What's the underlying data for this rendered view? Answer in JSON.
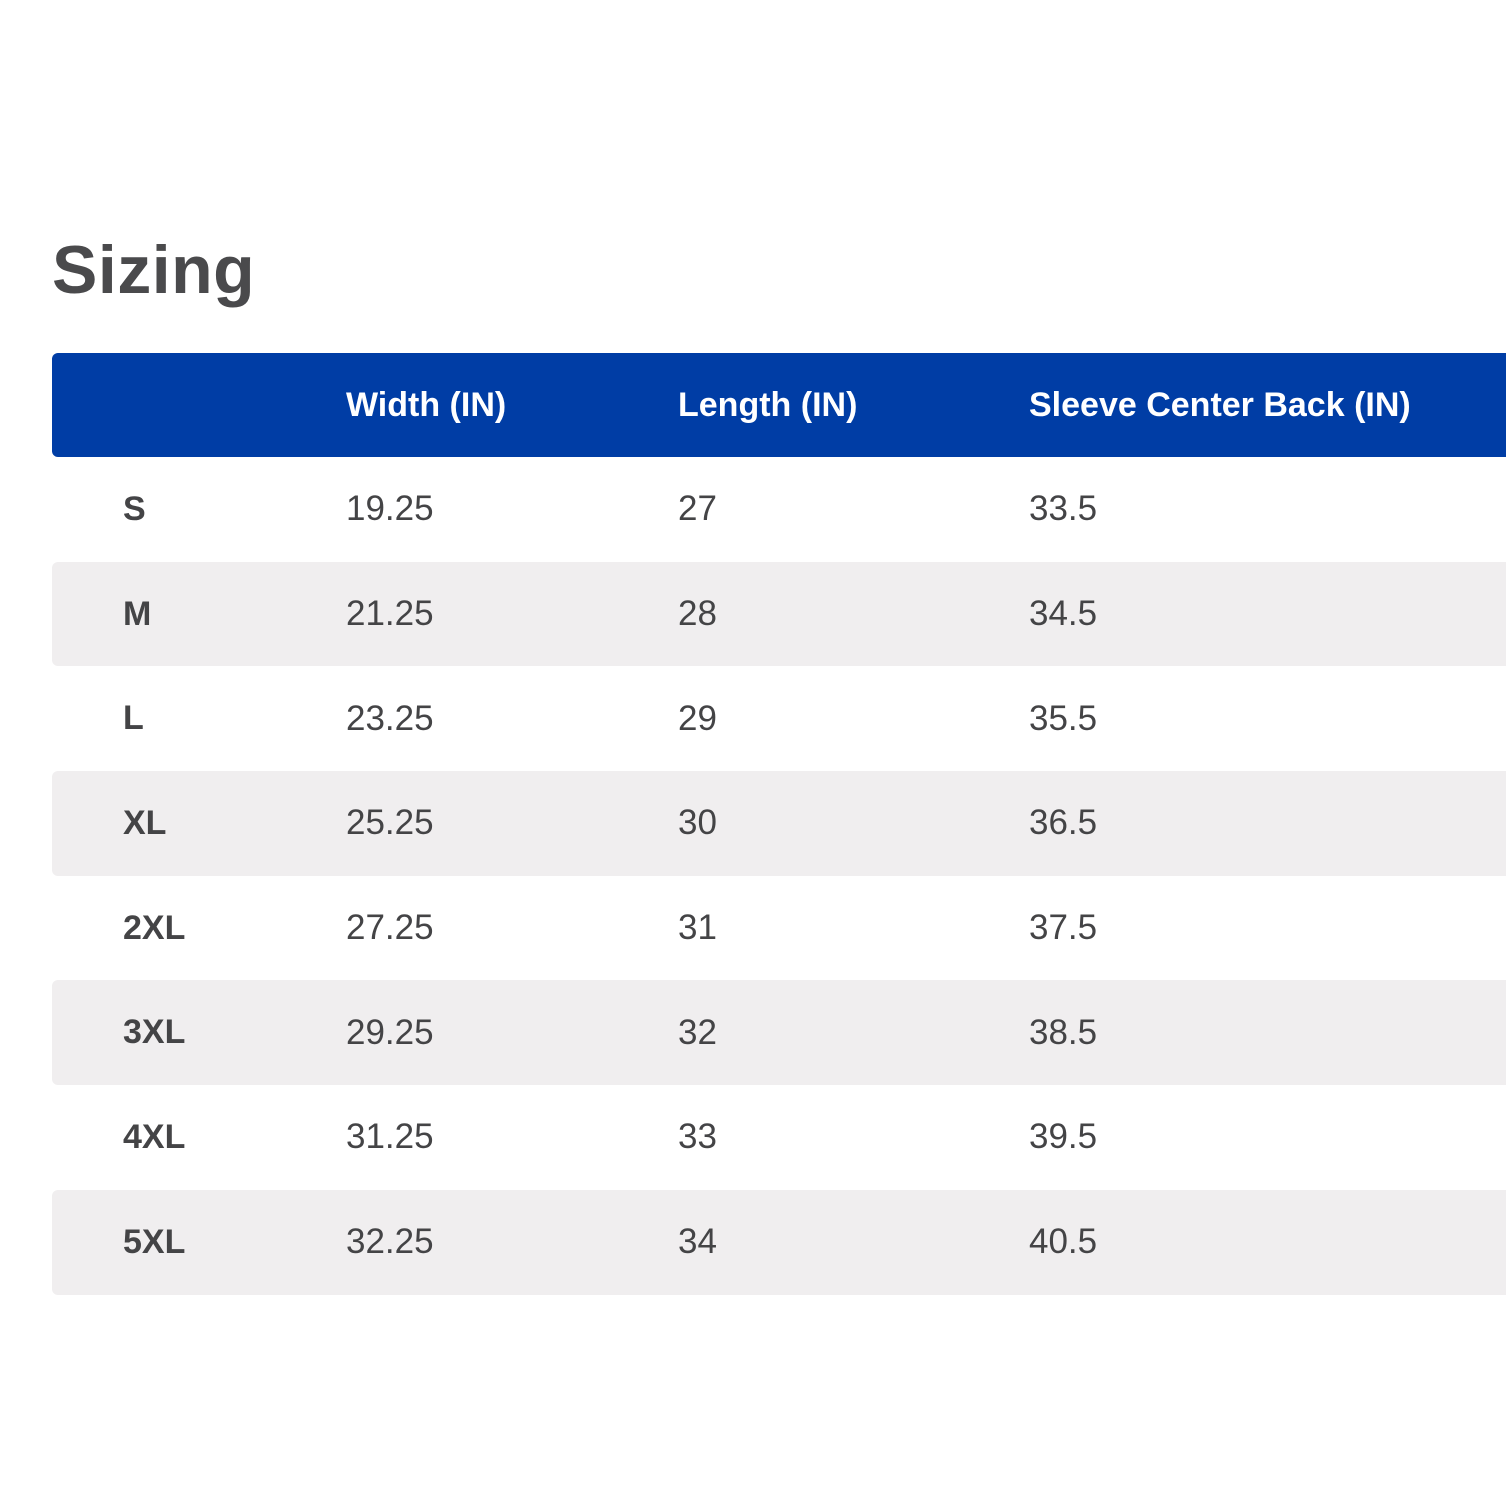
{
  "title": "Sizing",
  "table": {
    "headers": [
      "",
      "Width (IN)",
      "Length (IN)",
      "Sleeve Center Back (IN)"
    ],
    "rows": [
      [
        "S",
        "19.25",
        "27",
        "33.5"
      ],
      [
        "M",
        "21.25",
        "28",
        "34.5"
      ],
      [
        "L",
        "23.25",
        "29",
        "35.5"
      ],
      [
        "XL",
        "25.25",
        "30",
        "36.5"
      ],
      [
        "2XL",
        "27.25",
        "31",
        "37.5"
      ],
      [
        "3XL",
        "29.25",
        "32",
        "38.5"
      ],
      [
        "4XL",
        "31.25",
        "33",
        "39.5"
      ],
      [
        "5XL",
        "32.25",
        "34",
        "40.5"
      ]
    ]
  },
  "colors": {
    "header_background": "#003da5",
    "header_text": "#ffffff",
    "alt_row_background": "#f0eeef",
    "text": "#444446"
  }
}
